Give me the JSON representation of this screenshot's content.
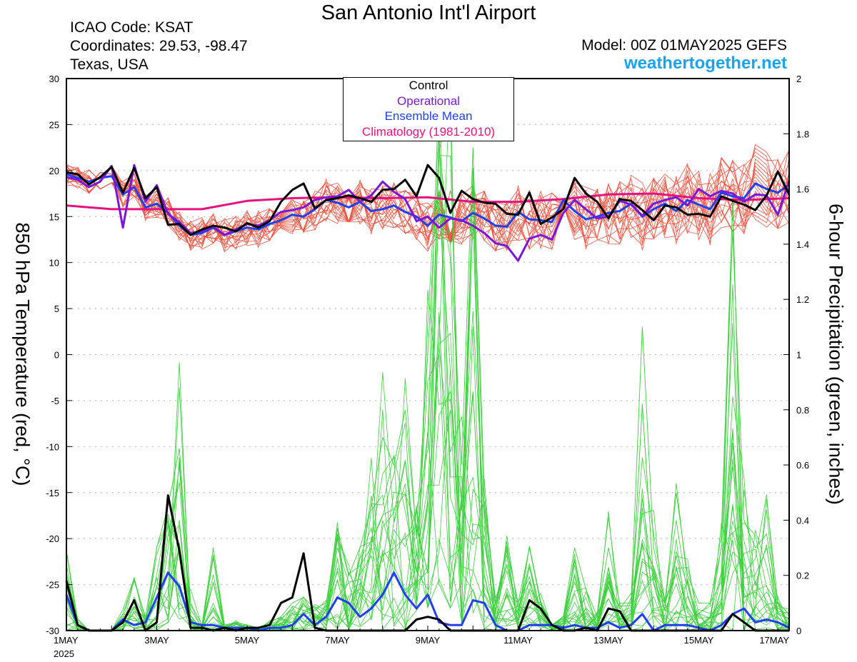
{
  "header": {
    "title": "San Antonio Int'l Airport",
    "icao": "ICAO Code: KSAT",
    "coords": "Coordinates: 29.53, -98.47",
    "region": "Texas, USA",
    "model": "Model: 00Z 01MAY2025 GEFS",
    "site": "weathertogether.net"
  },
  "colors": {
    "ensemble_member_temp": "#f0503c",
    "ensemble_member_precip": "#3ccf3c",
    "control": "#000000",
    "operational": "#7b16d9",
    "ensemble_mean": "#2040ee",
    "climatology": "#e8107f",
    "site_link": "#1aa3ef"
  },
  "legend": {
    "control": "Control",
    "operational": "Operational",
    "ensemble_mean": "Ensemble Mean",
    "climatology": "Climatology (1981-2010)"
  },
  "chart_data": {
    "type": "line",
    "title": "San Antonio Int'l Airport",
    "x_unit": "days since 2025-05-01 00Z",
    "xlim": [
      0,
      16
    ],
    "x_ticks": [
      {
        "x": 0,
        "label": "1MAY"
      },
      {
        "x": 2,
        "label": "3MAY"
      },
      {
        "x": 4,
        "label": "5MAY"
      },
      {
        "x": 6,
        "label": "7MAY"
      },
      {
        "x": 8,
        "label": "9MAY"
      },
      {
        "x": 10,
        "label": "11MAY"
      },
      {
        "x": 12,
        "label": "13MAY"
      },
      {
        "x": 14,
        "label": "15MAY"
      },
      {
        "x": 16,
        "label": "17MAY"
      }
    ],
    "x_year_label": "2025",
    "left_axis": {
      "label": "850 hPa Temperature (red, °C)",
      "ylim": [
        -30,
        30
      ],
      "ticks": [
        30,
        25,
        20,
        15,
        10,
        5,
        0,
        -5,
        -10,
        -15,
        -20,
        -25,
        -30
      ]
    },
    "right_axis": {
      "label": "6-hour Precipitation (green, inches)",
      "ylim": [
        0,
        2
      ],
      "ticks": [
        2,
        1.8,
        1.6,
        1.4,
        1.2,
        1,
        0.8,
        0.6,
        0.4,
        0.2,
        0
      ]
    },
    "grid": "dotted horizontal",
    "legend_position": "top-center",
    "series": [
      {
        "name": "Control",
        "axis": "left",
        "color": "#000000",
        "width": 3,
        "x": [
          0,
          0.25,
          0.5,
          0.75,
          1,
          1.25,
          1.5,
          1.75,
          2,
          2.25,
          2.5,
          2.75,
          3,
          3.25,
          3.5,
          3.75,
          4,
          4.25,
          4.5,
          4.75,
          5,
          5.25,
          5.5,
          5.75,
          6,
          6.25,
          6.5,
          6.75,
          7,
          7.25,
          7.5,
          7.75,
          8,
          8.25,
          8.5,
          8.75,
          9,
          9.25,
          9.5,
          9.75,
          10,
          10.25,
          10.5,
          10.75,
          11,
          11.25,
          11.5,
          11.75,
          12,
          12.25,
          12.5,
          12.75,
          13,
          13.25,
          13.5,
          13.75,
          14,
          14.25,
          14.5,
          14.75,
          15,
          15.25,
          15.5,
          15.75,
          16
        ],
        "y": [
          19.8,
          19.6,
          18.5,
          19.3,
          20.4,
          17.6,
          20.3,
          17.0,
          18.2,
          14.1,
          14.2,
          13.0,
          13.6,
          14.0,
          13.8,
          13.4,
          14.3,
          13.8,
          14.5,
          16.6,
          17.9,
          18.6,
          15.9,
          16.8,
          17.0,
          17.3,
          17.0,
          16.6,
          17.9,
          18.0,
          19.0,
          17.2,
          20.6,
          19.2,
          15.4,
          17.8,
          16.9,
          16.5,
          16.4,
          15.3,
          15.2,
          17.6,
          14.2,
          14.9,
          15.8,
          19.2,
          17.5,
          16.6,
          14.8,
          16.9,
          16.7,
          15.7,
          14.6,
          16.2,
          16.0,
          15.2,
          15.3,
          15.0,
          17.2,
          16.7,
          16.3,
          15.7,
          17.3,
          19.9,
          17.4
        ]
      },
      {
        "name": "Operational",
        "axis": "left",
        "color": "#7b16d9",
        "width": 3,
        "x": [
          0,
          0.25,
          0.5,
          0.75,
          1,
          1.25,
          1.5,
          1.75,
          2,
          2.25,
          2.5,
          2.75,
          3,
          3.25,
          3.5,
          3.75,
          4,
          4.25,
          4.5,
          4.75,
          5,
          5.25,
          5.5,
          5.75,
          6,
          6.25,
          6.5,
          6.75,
          7,
          7.25,
          7.5,
          7.75,
          8,
          8.25,
          8.5,
          8.75,
          9,
          9.25,
          9.5,
          9.75,
          10,
          10.25,
          10.5,
          10.75,
          11,
          11.25,
          11.5,
          11.75,
          12,
          12.25,
          12.5,
          12.75,
          13,
          13.25,
          13.5,
          13.75,
          14,
          14.25,
          14.5,
          14.75,
          15,
          15.25,
          15.5,
          15.75,
          16
        ],
        "y": [
          19.3,
          19.0,
          18.2,
          18.8,
          20.5,
          13.8,
          20.6,
          16.6,
          18.4,
          15.3,
          14.4,
          13.2,
          13.4,
          13.9,
          13.0,
          13.6,
          14.2,
          14.0,
          14.6,
          15.5,
          15.7,
          16.0,
          16.8,
          17.1,
          17.2,
          17.9,
          16.6,
          17.3,
          18.8,
          17.7,
          16.9,
          14.5,
          15.0,
          13.8,
          14.8,
          14.6,
          14.0,
          13.2,
          12.1,
          11.8,
          10.2,
          12.6,
          13.0,
          12.5,
          15.4,
          16.8,
          15.8,
          14.8,
          15.0,
          16.7,
          16.3,
          15.1,
          16.4,
          16.8,
          17.1,
          16.2,
          18.0,
          17.2,
          17.8,
          17.5,
          16.6,
          17.4,
          17.3,
          15.2,
          18.9
        ]
      },
      {
        "name": "Ensemble Mean",
        "axis": "left",
        "color": "#2040ee",
        "width": 3,
        "x": [
          0,
          0.25,
          0.5,
          0.75,
          1,
          1.25,
          1.5,
          1.75,
          2,
          2.25,
          2.5,
          2.75,
          3,
          3.25,
          3.5,
          3.75,
          4,
          4.25,
          4.5,
          4.75,
          5,
          5.25,
          5.5,
          5.75,
          6,
          6.25,
          6.5,
          6.75,
          7,
          7.25,
          7.5,
          7.75,
          8,
          8.25,
          8.5,
          8.75,
          9,
          9.25,
          9.5,
          9.75,
          10,
          10.25,
          10.5,
          10.75,
          11,
          11.25,
          11.5,
          11.75,
          12,
          12.25,
          12.5,
          12.75,
          13,
          13.25,
          13.5,
          13.75,
          14,
          14.25,
          14.5,
          14.75,
          15,
          15.25,
          15.5,
          15.75,
          16
        ],
        "y": [
          19.6,
          19.2,
          18.8,
          19.2,
          19.4,
          17.4,
          18.2,
          16.0,
          16.4,
          15.4,
          14.0,
          13.0,
          13.2,
          13.8,
          13.0,
          13.4,
          13.8,
          13.6,
          14.2,
          14.6,
          15.2,
          15.0,
          15.8,
          16.8,
          16.5,
          16.0,
          16.6,
          15.6,
          15.8,
          16.2,
          15.5,
          15.0,
          14.0,
          15.2,
          14.9,
          14.5,
          15.4,
          14.8,
          14.0,
          13.9,
          15.5,
          14.7,
          14.6,
          14.4,
          16.8,
          15.6,
          14.7,
          15.0,
          15.4,
          15.6,
          16.4,
          15.0,
          15.8,
          16.4,
          15.6,
          16.8,
          16.3,
          15.8,
          17.6,
          17.2,
          17.0,
          18.6,
          18.0,
          17.6,
          18.5
        ]
      },
      {
        "name": "Climatology (1981-2010)",
        "axis": "left",
        "color": "#e8107f",
        "width": 3,
        "x": [
          0,
          1,
          2,
          3,
          4,
          5,
          6,
          7,
          8,
          9,
          10,
          11,
          12,
          13,
          14,
          15,
          16
        ],
        "y": [
          16.2,
          15.8,
          15.8,
          15.8,
          16.7,
          17.0,
          17.1,
          17.0,
          17.1,
          16.6,
          16.6,
          16.9,
          17.4,
          17.5,
          17.0,
          16.8,
          17.0
        ]
      },
      {
        "name": "Control",
        "axis": "right",
        "color": "#000000",
        "width": 3,
        "x": [
          0,
          0.25,
          0.5,
          0.75,
          1,
          1.25,
          1.5,
          1.75,
          2,
          2.25,
          2.5,
          2.75,
          3,
          3.25,
          3.5,
          3.75,
          4,
          4.25,
          4.5,
          4.75,
          5,
          5.25,
          5.5,
          5.75,
          6,
          6.25,
          6.5,
          6.75,
          7,
          7.25,
          7.5,
          7.75,
          8,
          8.25,
          8.5,
          8.75,
          9,
          9.25,
          9.5,
          9.75,
          10,
          10.25,
          10.5,
          10.75,
          11,
          11.25,
          11.5,
          11.75,
          12,
          12.25,
          12.5,
          12.75,
          13,
          13.25,
          13.5,
          13.75,
          14,
          14.25,
          14.5,
          14.75,
          15,
          15.25,
          15.5,
          15.75,
          16
        ],
        "y": [
          0.18,
          0.02,
          0.0,
          0.0,
          0.0,
          0.03,
          0.11,
          0.0,
          0.03,
          0.49,
          0.29,
          0.01,
          0.01,
          0.0,
          0.01,
          0.0,
          0.01,
          0.01,
          0.02,
          0.1,
          0.12,
          0.28,
          0.01,
          0.0,
          0.0,
          0.0,
          0.0,
          0.0,
          0.0,
          0.0,
          0.0,
          0.04,
          0.05,
          0.04,
          0.0,
          0.0,
          0.0,
          0.0,
          0.0,
          0.0,
          0.0,
          0.11,
          0.08,
          0.02,
          0.0,
          0.0,
          0.01,
          0.0,
          0.08,
          0.07,
          0.0,
          0.0,
          0.0,
          0.0,
          0.0,
          0.0,
          0.0,
          0.0,
          0.0,
          0.06,
          0.03,
          0.0,
          0.0,
          0.0,
          0.0
        ]
      },
      {
        "name": "Ensemble Mean",
        "axis": "right",
        "color": "#2040ee",
        "width": 3,
        "x": [
          0,
          0.25,
          0.5,
          0.75,
          1,
          1.25,
          1.5,
          1.75,
          2,
          2.25,
          2.5,
          2.75,
          3,
          3.25,
          3.5,
          3.75,
          4,
          4.25,
          4.5,
          4.75,
          5,
          5.25,
          5.5,
          5.75,
          6,
          6.25,
          6.5,
          6.75,
          7,
          7.25,
          7.5,
          7.75,
          8,
          8.25,
          8.5,
          8.75,
          9,
          9.25,
          9.5,
          9.75,
          10,
          10.25,
          10.5,
          10.75,
          11,
          11.25,
          11.5,
          11.75,
          12,
          12.25,
          12.5,
          12.75,
          13,
          13.25,
          13.5,
          13.75,
          14,
          14.25,
          14.5,
          14.75,
          15,
          15.25,
          15.5,
          15.75,
          16
        ],
        "y": [
          0.13,
          0.02,
          0.0,
          0.0,
          0.0,
          0.04,
          0.02,
          0.03,
          0.12,
          0.21,
          0.16,
          0.03,
          0.02,
          0.02,
          0.01,
          0.01,
          0.01,
          0.0,
          0.01,
          0.01,
          0.02,
          0.06,
          0.02,
          0.05,
          0.12,
          0.1,
          0.05,
          0.08,
          0.13,
          0.21,
          0.13,
          0.08,
          0.13,
          0.03,
          0.02,
          0.02,
          0.11,
          0.1,
          0.02,
          0.0,
          0.0,
          0.02,
          0.02,
          0.02,
          0.01,
          0.02,
          0.01,
          0.01,
          0.03,
          0.01,
          0.02,
          0.06,
          0.0,
          0.02,
          0.02,
          0.02,
          0.01,
          0.0,
          0.02,
          0.06,
          0.08,
          0.03,
          0.04,
          0.03,
          0.01
        ]
      },
      {
        "name": "Ensemble Members",
        "axis": "right",
        "color": "#3ccf3c",
        "width": 0.8,
        "x": [
          0,
          0.25,
          0.5,
          0.75,
          1,
          1.25,
          1.5,
          1.75,
          2,
          2.25,
          2.5,
          2.75,
          3,
          3.25,
          3.5,
          3.75,
          4,
          4.25,
          4.5,
          4.75,
          5,
          5.25,
          5.5,
          5.75,
          6,
          6.25,
          6.5,
          6.75,
          7,
          7.25,
          7.5,
          7.75,
          8,
          8.25,
          8.5,
          8.75,
          9,
          9.25,
          9.5,
          9.75,
          10,
          10.25,
          10.5,
          10.75,
          11,
          11.25,
          11.5,
          11.75,
          12,
          12.25,
          12.5,
          12.75,
          13,
          13.25,
          13.5,
          13.75,
          14,
          14.25,
          14.5,
          14.75,
          15,
          15.25,
          15.5,
          15.75,
          16
        ],
        "y": [
          0.29,
          0.04,
          0.0,
          0.0,
          0.0,
          0.06,
          0.18,
          0.05,
          0.3,
          0.45,
          0.66,
          0.1,
          0.02,
          0.3,
          0.02,
          0.03,
          0.02,
          0.01,
          0.03,
          0.05,
          0.1,
          0.12,
          0.08,
          0.1,
          0.35,
          0.2,
          0.3,
          0.45,
          0.7,
          0.6,
          0.8,
          0.35,
          1.0,
          1.75,
          1.4,
          0.6,
          1.75,
          0.5,
          0.1,
          0.3,
          0.1,
          0.3,
          0.1,
          0.02,
          0.05,
          0.3,
          0.15,
          0.05,
          0.3,
          0.1,
          0.1,
          1.1,
          0.3,
          0.1,
          0.5,
          0.2,
          0.1,
          0.1,
          0.3,
          1.45,
          0.4,
          0.3,
          0.35,
          0.1,
          0.06
        ]
      }
    ]
  }
}
